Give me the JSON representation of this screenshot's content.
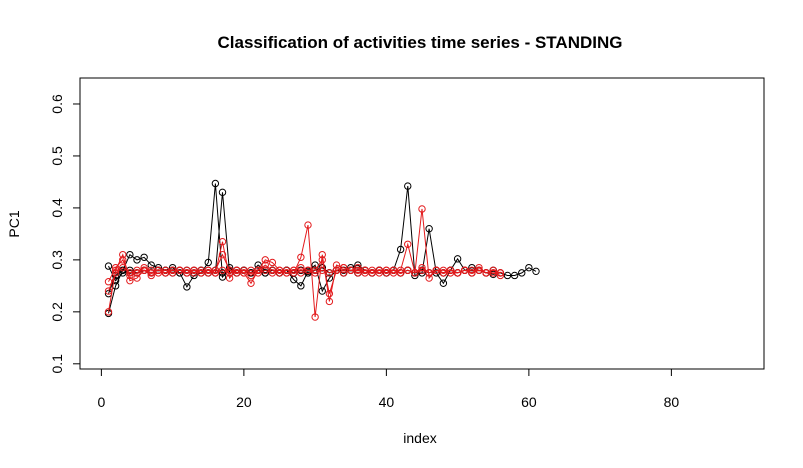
{
  "chart_data": {
    "type": "line",
    "title": "Classification of activities time series -  STANDING",
    "xlabel": "index",
    "ylabel": "PC1",
    "xlim": [
      -3,
      93
    ],
    "ylim": [
      0.09,
      0.65
    ],
    "x_ticks": [
      0,
      20,
      40,
      60,
      80
    ],
    "x_tick_labels": [
      "0",
      "20",
      "40",
      "60",
      "80"
    ],
    "y_ticks": [
      0.1,
      0.2,
      0.3,
      0.4,
      0.5,
      0.6
    ],
    "y_tick_labels": [
      "0.1",
      "0.2",
      "0.3",
      "0.4",
      "0.5",
      "0.6"
    ],
    "grid": false,
    "marker": "open-circle",
    "series": [
      {
        "color": "#000000",
        "x": [
          1,
          2,
          3,
          4,
          5,
          6,
          7,
          8,
          9,
          10,
          11,
          12,
          13,
          14,
          15,
          16,
          17,
          18,
          19,
          20,
          21,
          22,
          23,
          24,
          25,
          26,
          27,
          28,
          29,
          30,
          31,
          32,
          33,
          34,
          35,
          36,
          37,
          38,
          39,
          40,
          41,
          42,
          43,
          44,
          45,
          46,
          47,
          48,
          49,
          50,
          51,
          52,
          53,
          54,
          55,
          56,
          57,
          58,
          59,
          60,
          61
        ],
        "y": [
          0.197,
          0.25,
          0.28,
          0.31,
          0.3,
          0.305,
          0.29,
          0.285,
          0.28,
          0.285,
          0.275,
          0.248,
          0.27,
          0.275,
          0.295,
          0.447,
          0.267,
          0.285,
          0.275,
          0.28,
          0.275,
          0.29,
          0.28,
          0.28,
          0.275,
          0.28,
          0.262,
          0.25,
          0.278,
          0.29,
          0.24,
          0.265,
          0.28,
          0.28,
          0.285,
          0.29,
          0.28,
          0.275,
          0.28,
          0.275,
          0.28,
          0.32,
          0.442,
          0.27,
          0.275,
          0.36,
          0.275,
          0.255,
          0.28,
          0.302,
          0.28,
          0.285,
          0.28,
          0.275,
          0.272,
          0.275,
          0.27,
          0.27,
          0.275,
          0.285,
          0.278
        ]
      },
      {
        "color": "#000000",
        "x": [
          1,
          2,
          3,
          4,
          5,
          6,
          7,
          8,
          9,
          10,
          11,
          12,
          13,
          14,
          15,
          16,
          17,
          18,
          19,
          20,
          21,
          22,
          23,
          24,
          25,
          26,
          27,
          28,
          29,
          30,
          31,
          32,
          33,
          34,
          35,
          36,
          37,
          38,
          39,
          40,
          41,
          42,
          43,
          44,
          45,
          46,
          47,
          48,
          49,
          50
        ],
        "y": [
          0.235,
          0.27,
          0.28,
          0.275,
          0.275,
          0.28,
          0.275,
          0.28,
          0.28,
          0.275,
          0.28,
          0.275,
          0.28,
          0.28,
          0.275,
          0.275,
          0.43,
          0.275,
          0.28,
          0.28,
          0.275,
          0.28,
          0.275,
          0.28,
          0.275,
          0.28,
          0.275,
          0.28,
          0.275,
          0.28,
          0.285,
          0.275,
          0.28,
          0.275,
          0.28,
          0.275,
          0.28,
          0.275,
          0.28,
          0.275,
          0.28,
          0.275,
          0.28,
          0.275,
          0.28,
          0.275,
          0.28,
          0.275,
          0.28,
          0.275
        ]
      },
      {
        "color": "#000000",
        "x": [
          1,
          2,
          3,
          4,
          5,
          6,
          7,
          8,
          9,
          10,
          11,
          12,
          13,
          14,
          15,
          16,
          17,
          18,
          19,
          20,
          21,
          22,
          23,
          24,
          25,
          26,
          27,
          28,
          29,
          30,
          31,
          32,
          33,
          34,
          35,
          36,
          37,
          38,
          39,
          40,
          41,
          42,
          43,
          44,
          45,
          46,
          47,
          48,
          49,
          50,
          51,
          52,
          53,
          54,
          55
        ],
        "y": [
          0.288,
          0.26,
          0.275,
          0.28,
          0.275,
          0.28,
          0.275,
          0.28,
          0.275,
          0.28,
          0.275,
          0.28,
          0.275,
          0.28,
          0.275,
          0.28,
          0.275,
          0.28,
          0.275,
          0.28,
          0.275,
          0.28,
          0.275,
          0.28,
          0.275,
          0.28,
          0.275,
          0.28,
          0.275,
          0.28,
          0.285,
          0.275,
          0.28,
          0.275,
          0.28,
          0.275,
          0.28,
          0.275,
          0.28,
          0.275,
          0.28,
          0.275,
          0.28,
          0.275,
          0.28,
          0.275,
          0.28,
          0.275,
          0.28,
          0.275,
          0.28,
          0.275,
          0.28,
          0.275,
          0.28
        ]
      },
      {
        "color": "#e31a1c",
        "x": [
          1,
          2,
          3,
          4,
          5,
          6,
          7,
          8,
          9,
          10,
          11,
          12,
          13,
          14,
          15,
          16,
          17,
          18,
          19,
          20,
          21,
          22,
          23,
          24,
          25,
          26,
          27,
          28,
          29,
          30,
          31,
          32,
          33,
          34,
          35,
          36,
          37,
          38,
          39,
          40,
          41,
          42,
          43,
          44,
          45,
          46,
          47,
          48,
          49,
          50,
          51,
          52,
          53,
          54,
          55,
          56
        ],
        "y": [
          0.2,
          0.28,
          0.31,
          0.26,
          0.265,
          0.28,
          0.27,
          0.275,
          0.275,
          0.28,
          0.28,
          0.275,
          0.28,
          0.275,
          0.28,
          0.275,
          0.335,
          0.265,
          0.28,
          0.275,
          0.255,
          0.28,
          0.3,
          0.295,
          0.28,
          0.275,
          0.275,
          0.305,
          0.367,
          0.19,
          0.31,
          0.22,
          0.29,
          0.285,
          0.28,
          0.285,
          0.275,
          0.28,
          0.275,
          0.28,
          0.275,
          0.28,
          0.33,
          0.275,
          0.398,
          0.265,
          0.28,
          0.275,
          0.28,
          0.275,
          0.28,
          0.275,
          0.285,
          0.275,
          0.275,
          0.27
        ]
      },
      {
        "color": "#e31a1c",
        "x": [
          1,
          2,
          3,
          4,
          5,
          6,
          7,
          8,
          9,
          10,
          11,
          12,
          13,
          14,
          15,
          16,
          17,
          18,
          19,
          20,
          21,
          22,
          23,
          24,
          25,
          26,
          27,
          28,
          29,
          30,
          31,
          32,
          33,
          34,
          35,
          36,
          37,
          38,
          39,
          40,
          41,
          42,
          43,
          44,
          45,
          46,
          47,
          48,
          49,
          50,
          51,
          52,
          53,
          54,
          55,
          56
        ],
        "y": [
          0.258,
          0.285,
          0.3,
          0.27,
          0.275,
          0.285,
          0.28,
          0.28,
          0.275,
          0.28,
          0.28,
          0.28,
          0.275,
          0.28,
          0.275,
          0.28,
          0.31,
          0.28,
          0.275,
          0.28,
          0.27,
          0.28,
          0.29,
          0.28,
          0.275,
          0.28,
          0.28,
          0.285,
          0.28,
          0.28,
          0.3,
          0.235,
          0.28,
          0.285,
          0.28,
          0.28,
          0.28,
          0.275,
          0.28,
          0.28,
          0.28,
          0.275,
          0.28,
          0.275,
          0.285,
          0.275,
          0.28,
          0.28,
          0.275,
          0.275,
          0.28,
          0.28,
          0.28,
          0.275,
          0.275,
          0.275
        ]
      },
      {
        "color": "#e31a1c",
        "x": [
          1,
          2,
          3,
          4,
          5,
          6,
          7,
          8,
          9,
          10,
          11,
          12,
          13,
          14,
          15,
          16,
          17,
          18,
          19,
          20,
          21,
          22,
          23,
          24,
          25,
          26,
          27,
          28,
          29,
          30,
          31,
          32,
          33,
          34,
          35,
          36,
          37,
          38,
          39,
          40,
          41,
          42,
          43,
          44,
          45,
          46,
          47,
          48,
          49,
          50,
          51,
          52,
          53,
          54,
          55,
          56
        ],
        "y": [
          0.24,
          0.275,
          0.285,
          0.275,
          0.28,
          0.28,
          0.275,
          0.28,
          0.28,
          0.275,
          0.28,
          0.275,
          0.28,
          0.275,
          0.28,
          0.275,
          0.28,
          0.275,
          0.28,
          0.275,
          0.28,
          0.275,
          0.28,
          0.275,
          0.28,
          0.275,
          0.28,
          0.275,
          0.28,
          0.275,
          0.28,
          0.275,
          0.28,
          0.275,
          0.28,
          0.275,
          0.28,
          0.275,
          0.28,
          0.275,
          0.28,
          0.275,
          0.28,
          0.275,
          0.28,
          0.275,
          0.28,
          0.275,
          0.28,
          0.275,
          0.28,
          0.275,
          0.28,
          0.275,
          0.28,
          0.275
        ]
      }
    ]
  }
}
